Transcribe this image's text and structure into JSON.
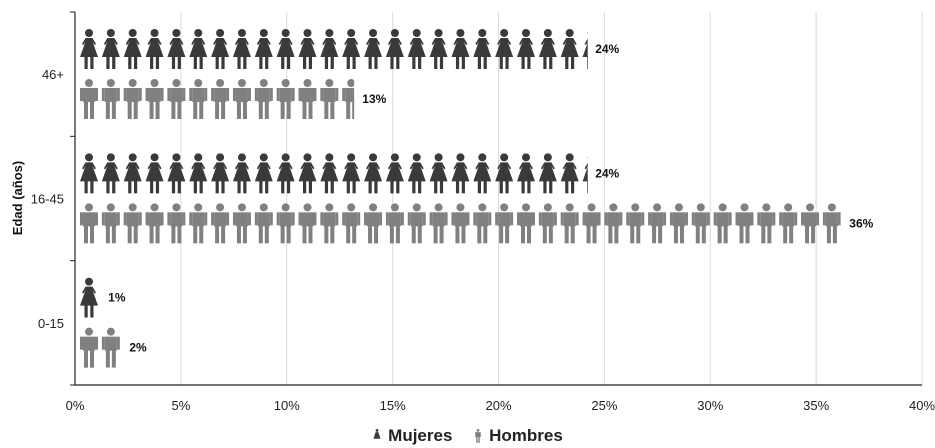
{
  "chart_data": {
    "type": "bar",
    "ylabel": "Edad (años)",
    "xlim": [
      0,
      40
    ],
    "x_ticks": [
      "0%",
      "5%",
      "10%",
      "15%",
      "20%",
      "25%",
      "30%",
      "35%",
      "40%"
    ],
    "categories": [
      "46+",
      "16-45",
      "0-15"
    ],
    "series": [
      {
        "name": "Mujeres",
        "values": [
          24,
          24,
          1
        ],
        "labels": [
          "24%",
          "24%",
          "1%"
        ],
        "color": "#3a3a3a",
        "icon": "woman-icon"
      },
      {
        "name": "Hombres",
        "values": [
          13,
          36,
          2
        ],
        "labels": [
          "13%",
          "36%",
          "2%"
        ],
        "color": "#808080",
        "icon": "man-icon"
      }
    ],
    "grid": "vertical",
    "legend_position": "bottom"
  }
}
